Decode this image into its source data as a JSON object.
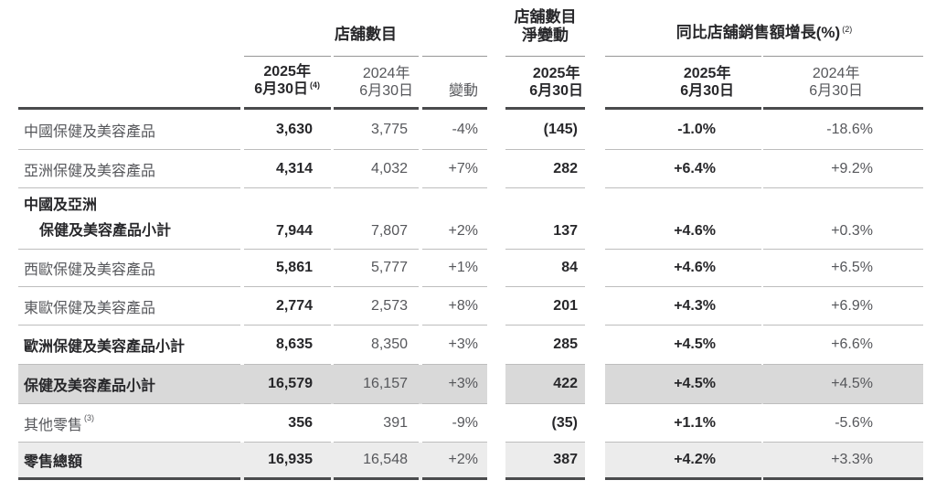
{
  "page": {
    "background": "#ffffff"
  },
  "table": {
    "groups": {
      "stores": "店舖數目",
      "net_change_line1": "店舖數目",
      "net_change_line2": "淨變動",
      "sales_growth": "同比店舖銷售額增長(%)",
      "sales_growth_sup": "(2)"
    },
    "columns": {
      "c1_l1": "2025年",
      "c1_l2": "6月30日",
      "c1_sup": "(4)",
      "c2_l1": "2024年",
      "c2_l2": "6月30日",
      "c3": "變動",
      "c4_l1": "2025年",
      "c4_l2": "6月30日",
      "c5_l1": "2025年",
      "c5_l2": "6月30日",
      "c6_l1": "2024年",
      "c6_l2": "6月30日"
    },
    "rows": [
      {
        "label": "中國保健及美容產品",
        "stores_2025": "3,630",
        "stores_2024": "3,775",
        "change": "-4%",
        "net_change": "(145)",
        "growth_2025": "-1.0%",
        "growth_2024": "-18.6%"
      },
      {
        "label": "亞洲保健及美容產品",
        "stores_2025": "4,314",
        "stores_2024": "4,032",
        "change": "+7%",
        "net_change": "282",
        "growth_2025": "+6.4%",
        "growth_2024": "+9.2%"
      },
      {
        "label": "中國及亞洲",
        "label_line2": "保健及美容產品小計",
        "stores_2025": "7,944",
        "stores_2024": "7,807",
        "change": "+2%",
        "net_change": "137",
        "growth_2025": "+4.6%",
        "growth_2024": "+0.3%"
      },
      {
        "label": "西歐保健及美容產品",
        "stores_2025": "5,861",
        "stores_2024": "5,777",
        "change": "+1%",
        "net_change": "84",
        "growth_2025": "+4.6%",
        "growth_2024": "+6.5%"
      },
      {
        "label": "東歐保健及美容產品",
        "stores_2025": "2,774",
        "stores_2024": "2,573",
        "change": "+8%",
        "net_change": "201",
        "growth_2025": "+4.3%",
        "growth_2024": "+6.9%"
      },
      {
        "label": "歐洲保健及美容產品小計",
        "stores_2025": "8,635",
        "stores_2024": "8,350",
        "change": "+3%",
        "net_change": "285",
        "growth_2025": "+4.5%",
        "growth_2024": "+6.6%"
      },
      {
        "label": "保健及美容產品小計",
        "stores_2025": "16,579",
        "stores_2024": "16,157",
        "change": "+3%",
        "net_change": "422",
        "growth_2025": "+4.5%",
        "growth_2024": "+4.5%"
      },
      {
        "label": "其他零售",
        "label_sup": "(3)",
        "stores_2025": "356",
        "stores_2024": "391",
        "change": "-9%",
        "net_change": "(35)",
        "growth_2025": "+1.1%",
        "growth_2024": "-5.6%"
      },
      {
        "label": "零售總額",
        "stores_2025": "16,935",
        "stores_2024": "16,548",
        "change": "+2%",
        "net_change": "387",
        "growth_2025": "+4.2%",
        "growth_2024": "+3.3%"
      }
    ],
    "colors": {
      "highlight_subtotal": "#d9d9d9",
      "highlight_total": "#ececec",
      "text_dark": "#27272a",
      "text_gray": "#56575b",
      "rule_thick": "#4a4b4d",
      "rule_thin": "#bdbdbd"
    }
  }
}
